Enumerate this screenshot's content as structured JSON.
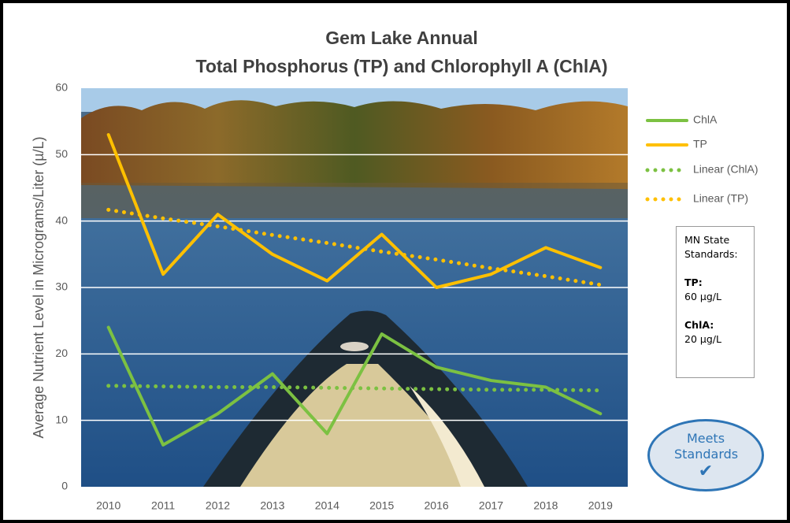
{
  "chart_data": {
    "type": "line",
    "title": "Gem Lake Annual",
    "subtitle": "Total Phosphorus (TP) and Chlorophyll A (ChlA)",
    "y_label": "Average Nutrient Level in Micrograms/Liter (µ/L)",
    "categories": [
      "2010",
      "2011",
      "2012",
      "2013",
      "2014",
      "2015",
      "2016",
      "2017",
      "2018",
      "2019"
    ],
    "series": [
      {
        "name": "ChlA",
        "color": "#7cc142",
        "line_style": "solid",
        "values": [
          24,
          6.3,
          11,
          17,
          8,
          23,
          18,
          16,
          15,
          11
        ]
      },
      {
        "name": "TP",
        "color": "#ffc000",
        "line_style": "solid",
        "values": [
          53,
          32,
          41,
          35,
          31,
          38,
          30,
          32,
          36,
          33
        ]
      },
      {
        "name": "Linear (ChlA)",
        "color": "#7cc142",
        "line_style": "dotted",
        "values": [
          15.2,
          15.1,
          15.0,
          15.0,
          14.9,
          14.8,
          14.7,
          14.6,
          14.6,
          14.5
        ]
      },
      {
        "name": "Linear (TP)",
        "color": "#ffc000",
        "line_style": "dotted",
        "values": [
          41.7,
          40.4,
          39.2,
          37.9,
          36.7,
          35.4,
          34.2,
          32.9,
          31.7,
          30.4
        ]
      }
    ],
    "ylim": [
      0,
      60
    ],
    "yticks": [
      0,
      10,
      20,
      30,
      40,
      50,
      60
    ],
    "grid": true,
    "legend": "right",
    "standards_box": {
      "heading": "MN State Standards:",
      "tp_label": "TP:",
      "tp_value": "60 µg/L",
      "chla_label": "ChlA:",
      "chla_value": "20 µg/L"
    },
    "badge": "Meets Standards"
  }
}
